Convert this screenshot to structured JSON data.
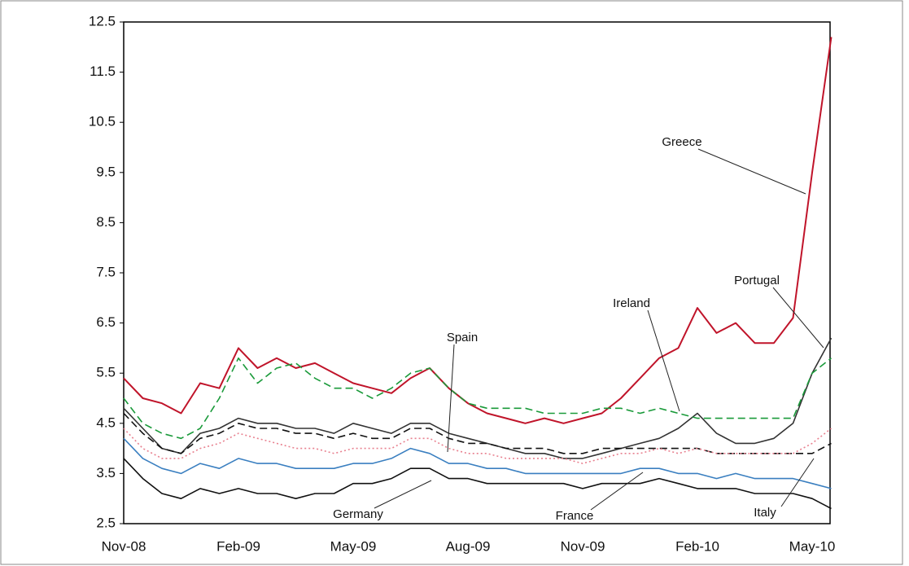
{
  "chart_data": {
    "type": "line",
    "categories": [
      "Nov-08",
      null,
      null,
      null,
      null,
      null,
      "Feb-09",
      null,
      null,
      null,
      null,
      null,
      "May-09",
      null,
      null,
      null,
      null,
      null,
      "Aug-09",
      null,
      null,
      null,
      null,
      null,
      "Nov-09",
      null,
      null,
      null,
      null,
      null,
      "Feb-10",
      null,
      null,
      null,
      null,
      null,
      "May-10",
      null
    ],
    "ylim": [
      2.5,
      12.5
    ],
    "yticks": [
      2.5,
      3.5,
      4.5,
      5.5,
      6.5,
      7.5,
      8.5,
      9.5,
      10.5,
      11.5,
      12.5
    ],
    "grid": false,
    "series": [
      {
        "name": "Greece",
        "color": "#c0142a",
        "line_style": "solid",
        "values": [
          5.4,
          5.0,
          4.9,
          4.7,
          5.3,
          5.2,
          6.0,
          5.6,
          5.8,
          5.6,
          5.7,
          5.5,
          5.3,
          5.2,
          5.1,
          5.4,
          5.6,
          5.2,
          4.9,
          4.7,
          4.6,
          4.5,
          4.6,
          4.5,
          4.6,
          4.7,
          5.0,
          5.4,
          5.8,
          6.0,
          6.8,
          6.3,
          6.5,
          6.1,
          6.1,
          6.6,
          9.5,
          12.2
        ]
      },
      {
        "name": "Portugal",
        "color": "#333333",
        "line_style": "solid",
        "values": [
          4.8,
          4.4,
          4.0,
          3.9,
          4.3,
          4.4,
          4.6,
          4.5,
          4.5,
          4.4,
          4.4,
          4.3,
          4.5,
          4.4,
          4.3,
          4.5,
          4.5,
          4.3,
          4.2,
          4.1,
          4.0,
          3.9,
          3.9,
          3.8,
          3.8,
          3.9,
          4.0,
          4.1,
          4.2,
          4.4,
          4.7,
          4.3,
          4.1,
          4.1,
          4.2,
          4.5,
          5.5,
          6.2
        ]
      },
      {
        "name": "Ireland",
        "color": "#1a9a3a",
        "line_style": "dashed",
        "values": [
          5.0,
          4.5,
          4.3,
          4.2,
          4.4,
          5.0,
          5.8,
          5.3,
          5.6,
          5.7,
          5.4,
          5.2,
          5.2,
          5.0,
          5.2,
          5.5,
          5.6,
          5.2,
          4.9,
          4.8,
          4.8,
          4.8,
          4.7,
          4.7,
          4.7,
          4.8,
          4.8,
          4.7,
          4.8,
          4.7,
          4.6,
          4.6,
          4.6,
          4.6,
          4.6,
          4.6,
          5.5,
          5.8
        ]
      },
      {
        "name": "Italy",
        "color": "#111111",
        "line_style": "dashed",
        "values": [
          4.7,
          4.3,
          4.0,
          3.9,
          4.2,
          4.3,
          4.5,
          4.4,
          4.4,
          4.3,
          4.3,
          4.2,
          4.3,
          4.2,
          4.2,
          4.4,
          4.4,
          4.2,
          4.1,
          4.1,
          4.0,
          4.0,
          4.0,
          3.9,
          3.9,
          4.0,
          4.0,
          4.0,
          4.0,
          4.0,
          4.0,
          3.9,
          3.9,
          3.9,
          3.9,
          3.9,
          3.9,
          4.1
        ]
      },
      {
        "name": "Spain",
        "color": "#e8808f",
        "line_style": "dotted",
        "values": [
          4.4,
          4.0,
          3.8,
          3.8,
          4.0,
          4.1,
          4.3,
          4.2,
          4.1,
          4.0,
          4.0,
          3.9,
          4.0,
          4.0,
          4.0,
          4.2,
          4.2,
          4.0,
          3.9,
          3.9,
          3.8,
          3.8,
          3.8,
          3.8,
          3.7,
          3.8,
          3.9,
          3.9,
          4.0,
          3.9,
          4.0,
          3.9,
          3.9,
          3.9,
          3.9,
          3.9,
          4.1,
          4.4
        ]
      },
      {
        "name": "France",
        "color": "#3a7fc0",
        "line_style": "solid",
        "values": [
          4.2,
          3.8,
          3.6,
          3.5,
          3.7,
          3.6,
          3.8,
          3.7,
          3.7,
          3.6,
          3.6,
          3.6,
          3.7,
          3.7,
          3.8,
          4.0,
          3.9,
          3.7,
          3.7,
          3.6,
          3.6,
          3.5,
          3.5,
          3.5,
          3.5,
          3.5,
          3.5,
          3.6,
          3.6,
          3.5,
          3.5,
          3.4,
          3.5,
          3.4,
          3.4,
          3.4,
          3.3,
          3.2
        ]
      },
      {
        "name": "Germany",
        "color": "#111111",
        "line_style": "solid",
        "values": [
          3.8,
          3.4,
          3.1,
          3.0,
          3.2,
          3.1,
          3.2,
          3.1,
          3.1,
          3.0,
          3.1,
          3.1,
          3.3,
          3.3,
          3.4,
          3.6,
          3.6,
          3.4,
          3.4,
          3.3,
          3.3,
          3.3,
          3.3,
          3.3,
          3.2,
          3.3,
          3.3,
          3.3,
          3.4,
          3.3,
          3.2,
          3.2,
          3.2,
          3.1,
          3.1,
          3.1,
          3.0,
          2.8
        ]
      }
    ]
  }
}
